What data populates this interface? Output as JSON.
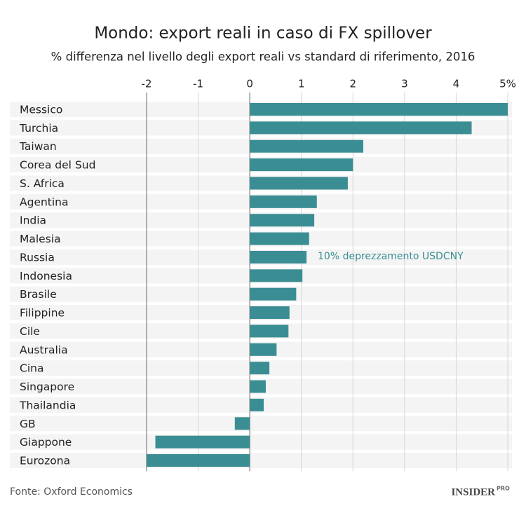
{
  "chart_data": {
    "type": "bar",
    "orientation": "horizontal",
    "title": "Mondo: export reali in caso di FX spillover",
    "subtitle": "% differenza nel livello degli export reali vs standard di riferimento, 2016",
    "categories": [
      "Messico",
      "Turchia",
      "Taiwan",
      "Corea del Sud",
      "S. Africa",
      "Agentina",
      "India",
      "Malesia",
      "Russia",
      "Indonesia",
      "Brasile",
      "Filippine",
      "Cile",
      "Australia",
      "Cina",
      "Singapore",
      "Thailandia",
      "GB",
      "Giappone",
      "Eurozona"
    ],
    "values": [
      5.0,
      4.3,
      2.2,
      2.0,
      1.9,
      1.3,
      1.25,
      1.15,
      1.1,
      1.02,
      0.9,
      0.77,
      0.75,
      0.52,
      0.38,
      0.31,
      0.27,
      -0.29,
      -1.83,
      -2.0
    ],
    "color": "#3a8e93",
    "xlim": [
      -2,
      5
    ],
    "xticks": [
      -2,
      -1,
      0,
      1,
      2,
      3,
      4,
      {
        "value": 5,
        "label": "5%"
      }
    ],
    "grid": true,
    "annotation": "10% deprezzamento USDCNY",
    "source": "Fonte: Oxford Economics",
    "logo": {
      "main": "INSIDER",
      "sup": "PRO"
    }
  }
}
